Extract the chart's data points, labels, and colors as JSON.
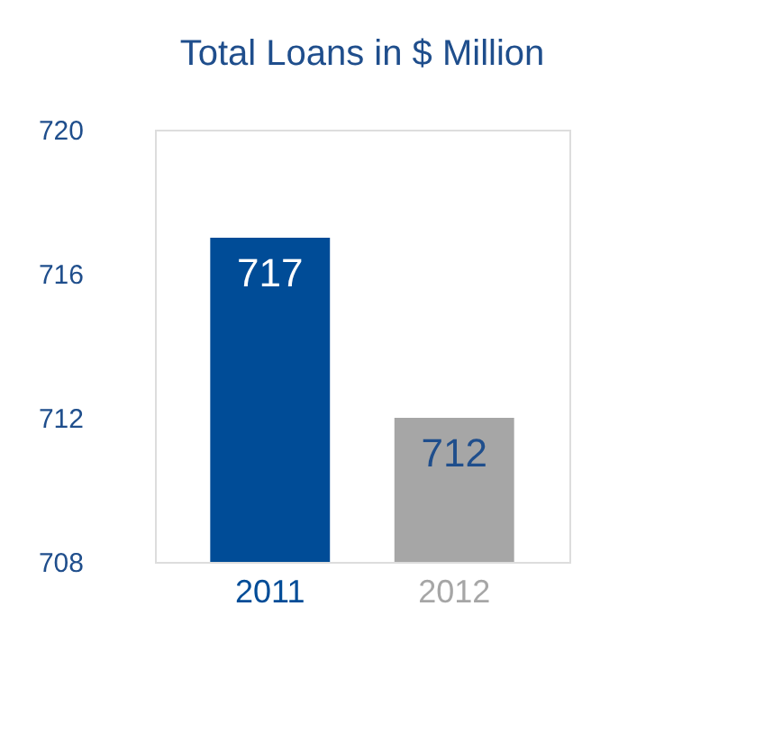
{
  "chart_data": {
    "type": "bar",
    "title": "Total Loans in $ Million",
    "categories": [
      "2011",
      "2012"
    ],
    "values": [
      717,
      712
    ],
    "colors": [
      "#004c97",
      "#a6a6a6"
    ],
    "ylim": [
      708,
      720
    ],
    "yticks": [
      708,
      712,
      716,
      720
    ],
    "data_labels": true,
    "grid": false
  }
}
